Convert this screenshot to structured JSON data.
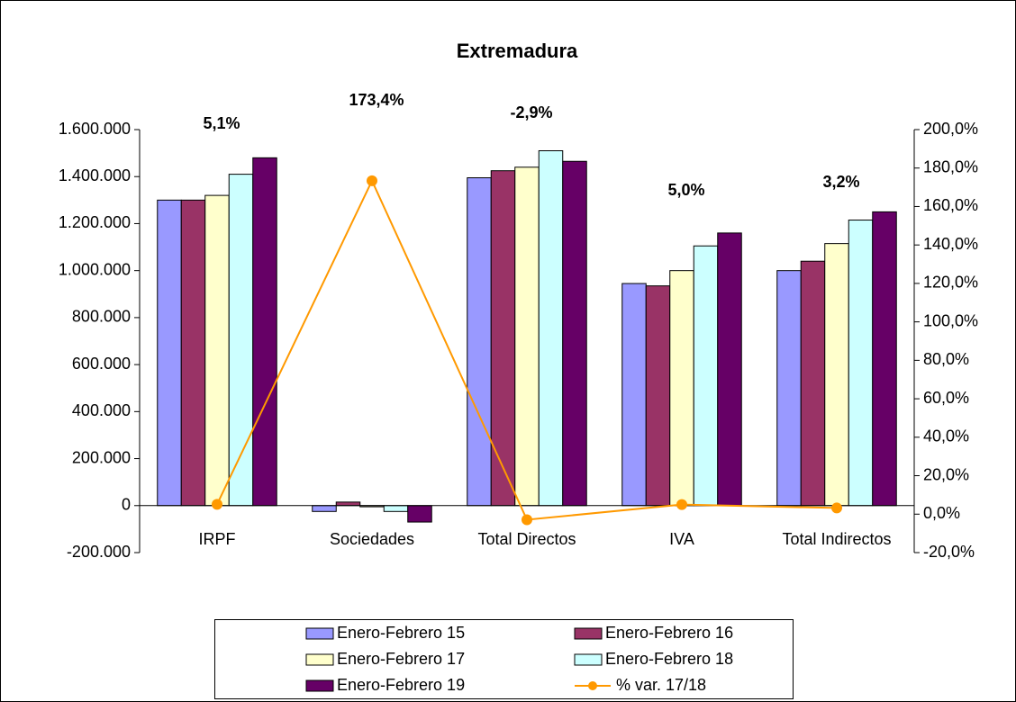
{
  "chart_data": {
    "type": "bar",
    "title": "Extremadura",
    "categories": [
      "IRPF",
      "Sociedades",
      "Total Directos",
      "IVA",
      "Total Indirectos"
    ],
    "series": [
      {
        "name": "Enero-Febrero 15",
        "color": "#9999ff",
        "values": [
          1300000,
          -25000,
          1395000,
          945000,
          1000000
        ]
      },
      {
        "name": "Enero-Febrero 16",
        "color": "#993366",
        "values": [
          1300000,
          15000,
          1425000,
          935000,
          1040000
        ]
      },
      {
        "name": "Enero-Febrero 17",
        "color": "#ffffcc",
        "values": [
          1320000,
          -5000,
          1440000,
          1000000,
          1115000
        ]
      },
      {
        "name": "Enero-Febrero 18",
        "color": "#ccffff",
        "values": [
          1410000,
          -25000,
          1510000,
          1105000,
          1215000
        ]
      },
      {
        "name": "Enero-Febrero 19",
        "color": "#660066",
        "values": [
          1480000,
          -70000,
          1465000,
          1160000,
          1250000
        ]
      },
      {
        "name": "% var. 17/18",
        "color": "#ff9900",
        "type": "line",
        "axis": "y2",
        "values": [
          5.1,
          173.4,
          -2.9,
          5.0,
          3.2
        ],
        "value_labels": [
          "5,1%",
          "173,4%",
          "-2,9%",
          "5,0%",
          "3,2%"
        ]
      }
    ],
    "ylim": [
      -200000,
      1600000
    ],
    "yticks": [
      {
        "value": -200000,
        "label": "-200.000"
      },
      0,
      {
        "value": 200000,
        "label": "200.000"
      },
      {
        "value": 400000,
        "label": "400.000"
      },
      {
        "value": 600000,
        "label": "600.000"
      },
      {
        "value": 800000,
        "label": "800.000"
      },
      {
        "value": 1000000,
        "label": "1.000.000"
      },
      {
        "value": 1200000,
        "label": "1.200.000"
      },
      {
        "value": 1400000,
        "label": "1.400.000"
      },
      {
        "value": 1600000,
        "label": "1.600.000"
      }
    ],
    "y2lim": [
      -20,
      200
    ],
    "y2ticks": [
      {
        "value": -20,
        "label": "-20,0%"
      },
      {
        "value": 0,
        "label": "0,0%"
      },
      {
        "value": 20,
        "label": "20,0%"
      },
      {
        "value": 40,
        "label": "40,0%"
      },
      {
        "value": 60,
        "label": "60,0%"
      },
      {
        "value": 80,
        "label": "80,0%"
      },
      {
        "value": 100,
        "label": "100,0%"
      },
      {
        "value": 120,
        "label": "120,0%"
      },
      {
        "value": 140,
        "label": "140,0%"
      },
      {
        "value": 160,
        "label": "160,0%"
      },
      {
        "value": 180,
        "label": "180,0%"
      },
      {
        "value": 200,
        "label": "200,0%"
      }
    ],
    "legend": "bottom"
  }
}
